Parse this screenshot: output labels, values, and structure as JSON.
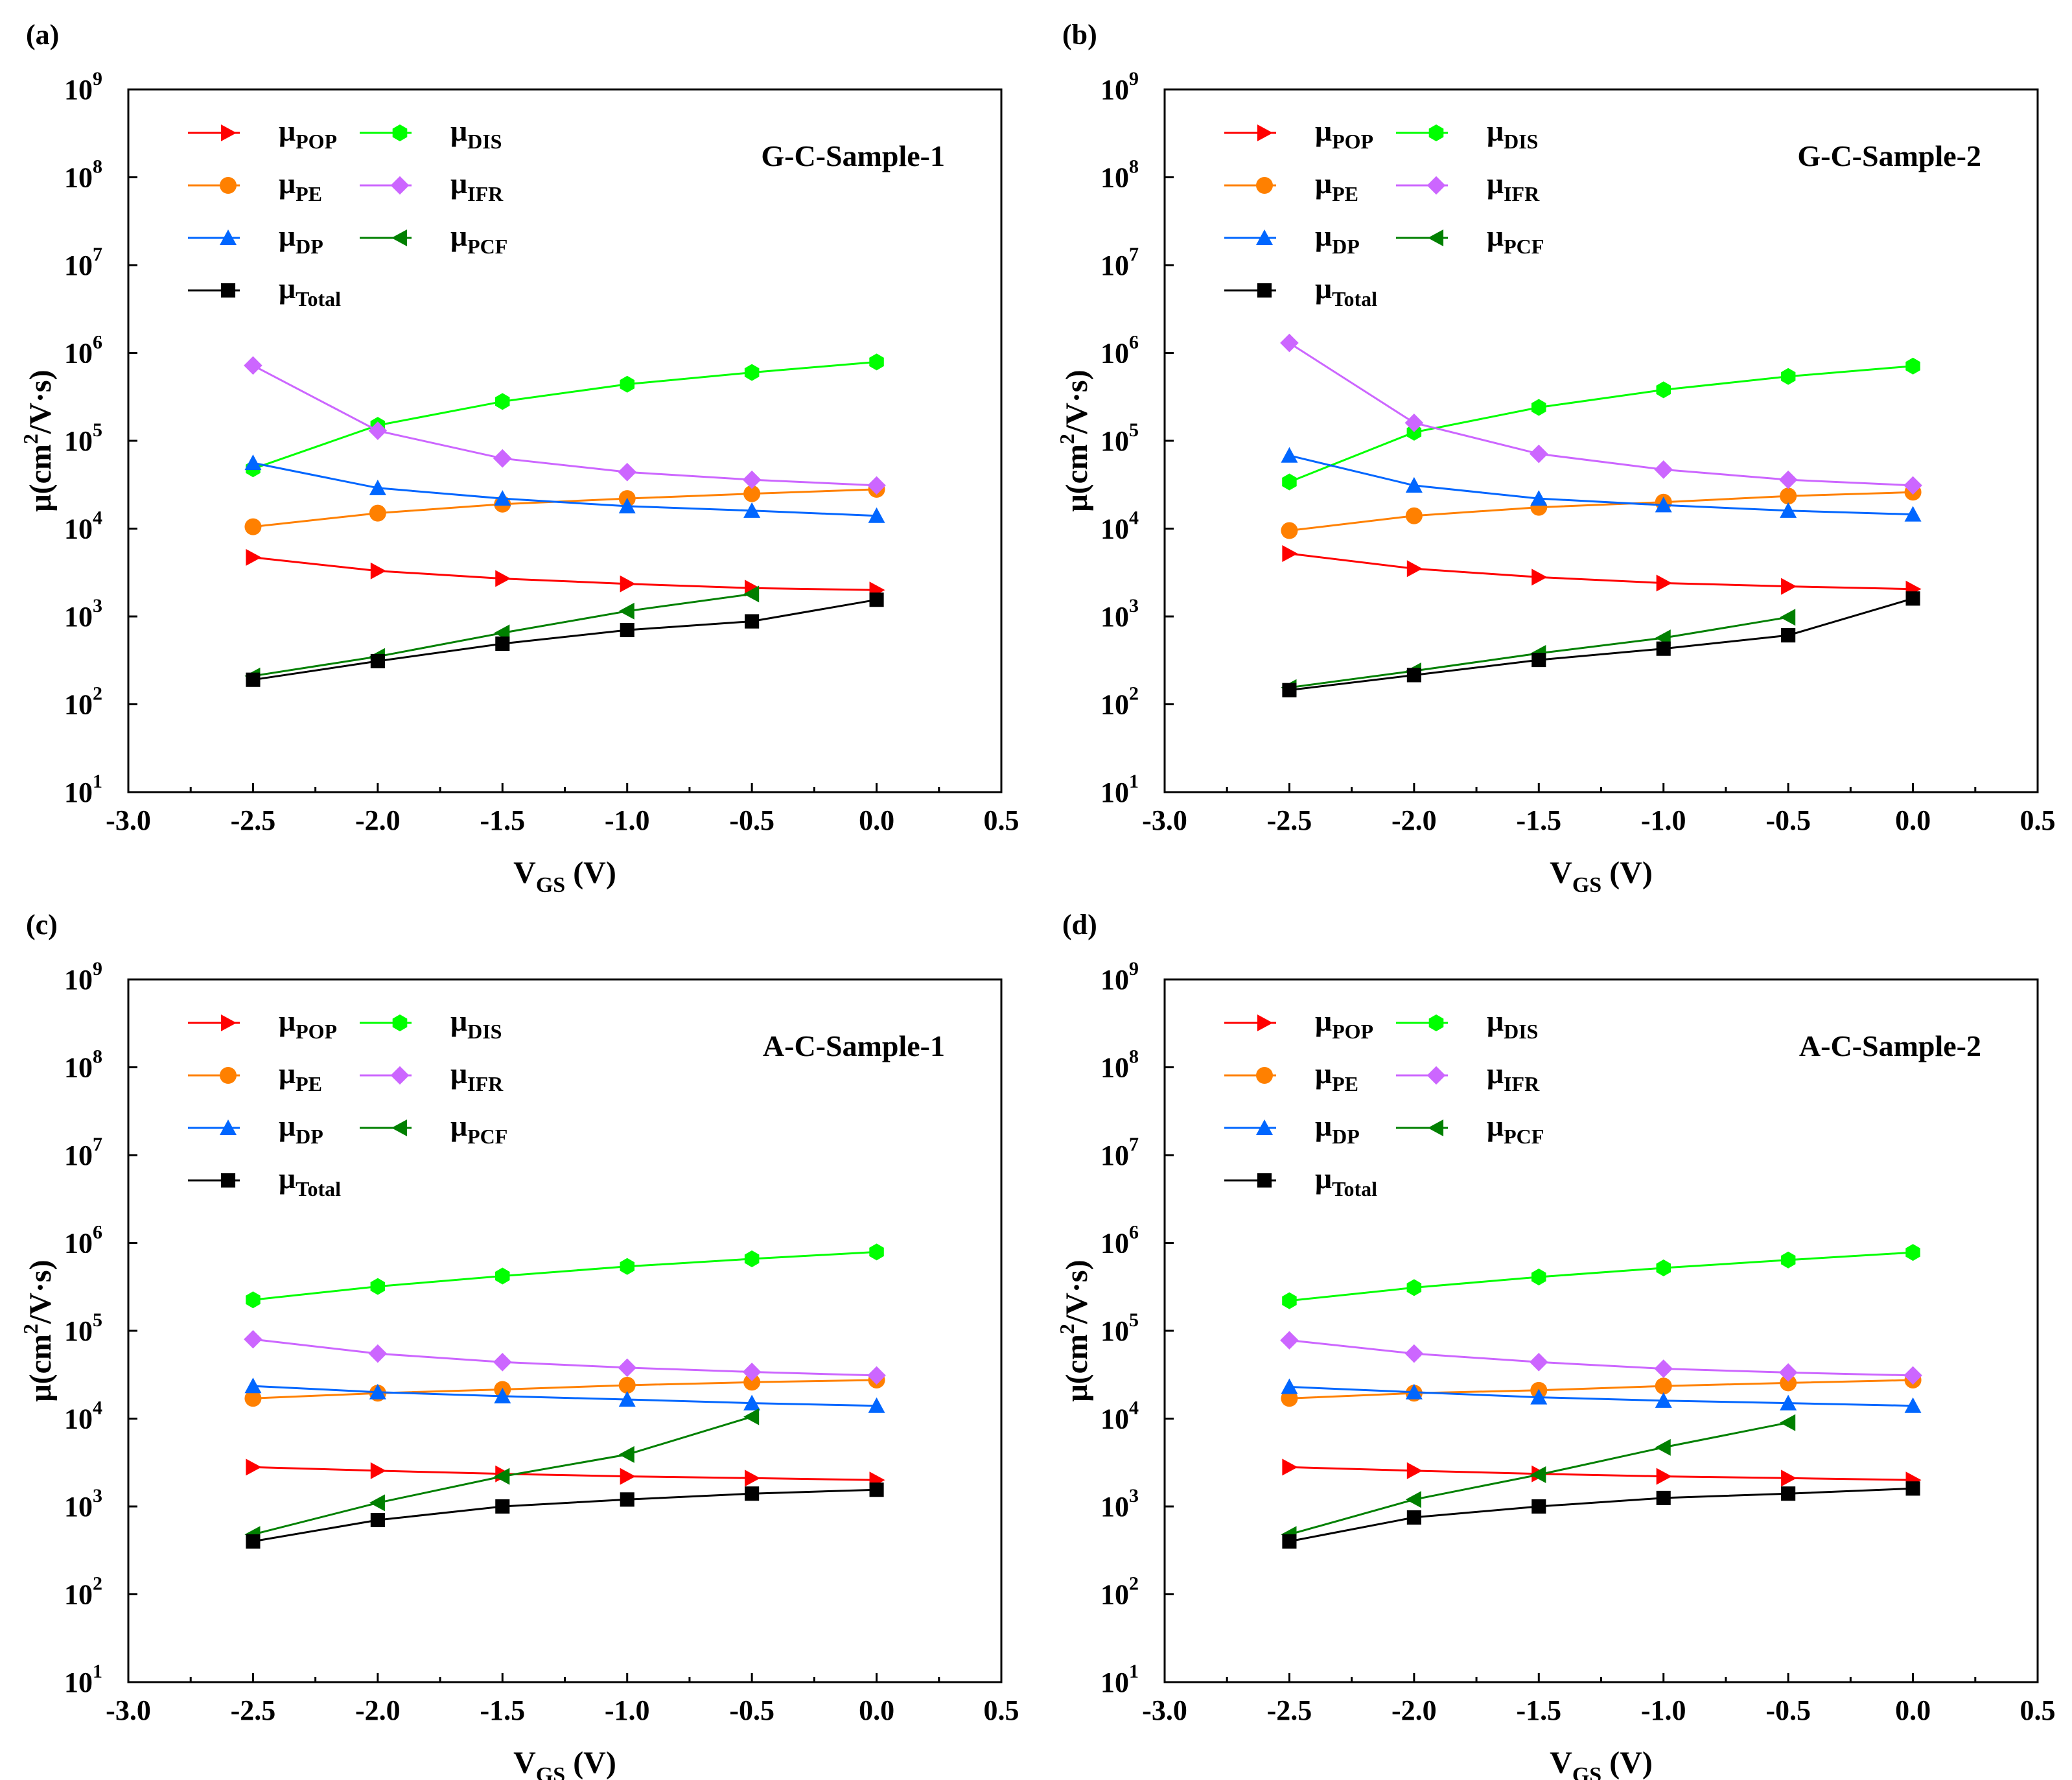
{
  "chart_data": [
    {
      "type": "line",
      "panel_label": "(a)",
      "sample_label": "G-C-Sample-1",
      "y_scale": "log",
      "xlabel": {
        "main": "V",
        "sub": "GS",
        "suffix": " (V)"
      },
      "ylabel": {
        "pre": "μ(cm",
        "sup": "2",
        "post": "/V·s)"
      },
      "xlim": [
        -3.0,
        0.5
      ],
      "ylim": [
        10,
        1000000000
      ],
      "x_ticks": [
        "-3.0",
        "-2.5",
        "-2.0",
        "-1.5",
        "-1.0",
        "-0.5",
        "0.0",
        "0.5"
      ],
      "y_ticks": [
        {
          "base": "10",
          "exp": "1"
        },
        {
          "base": "10",
          "exp": "2"
        },
        {
          "base": "10",
          "exp": "3"
        },
        {
          "base": "10",
          "exp": "4"
        },
        {
          "base": "10",
          "exp": "5"
        },
        {
          "base": "10",
          "exp": "6"
        },
        {
          "base": "10",
          "exp": "7"
        },
        {
          "base": "10",
          "exp": "8"
        },
        {
          "base": "10",
          "exp": "9"
        }
      ],
      "series": [
        {
          "key": "POP",
          "name": "μ",
          "sub": "POP",
          "color": "#ff0000",
          "marker": "triangle-right",
          "x": [
            -2.5,
            -2.0,
            -1.5,
            -1.0,
            -0.5,
            0.0
          ],
          "values": [
            4700,
            3300,
            2700,
            2350,
            2100,
            2000
          ]
        },
        {
          "key": "DIS",
          "name": "μ",
          "sub": "DIS",
          "color": "#00ff00",
          "marker": "hexagon",
          "x": [
            -2.5,
            -2.0,
            -1.5,
            -1.0,
            -0.5,
            0.0
          ],
          "values": [
            48000,
            150000,
            280000,
            440000,
            600000,
            790000
          ]
        },
        {
          "key": "PE",
          "name": "μ",
          "sub": "PE",
          "color": "#ff8000",
          "marker": "circle",
          "x": [
            -2.5,
            -2.0,
            -1.5,
            -1.0,
            -0.5,
            0.0
          ],
          "values": [
            10500,
            15000,
            19000,
            22000,
            25000,
            28000
          ]
        },
        {
          "key": "IFR",
          "name": "μ",
          "sub": "IFR",
          "color": "#cc66ff",
          "marker": "diamond",
          "x": [
            -2.5,
            -2.0,
            -1.5,
            -1.0,
            -0.5,
            0.0
          ],
          "values": [
            720000,
            130000,
            63000,
            44000,
            36000,
            31000
          ]
        },
        {
          "key": "DP",
          "name": "μ",
          "sub": "DP",
          "color": "#0066ff",
          "marker": "triangle-up",
          "x": [
            -2.5,
            -2.0,
            -1.5,
            -1.0,
            -0.5,
            0.0
          ],
          "values": [
            56000,
            29000,
            22000,
            18000,
            16000,
            14000
          ]
        },
        {
          "key": "PCF",
          "name": "μ",
          "sub": "PCF",
          "color": "#008000",
          "marker": "triangle-left",
          "x": [
            -2.5,
            -2.0,
            -1.5,
            -1.0,
            -0.5
          ],
          "values": [
            210,
            350,
            650,
            1150,
            1800
          ]
        },
        {
          "key": "Total",
          "name": "μ",
          "sub": "Total",
          "color": "#000000",
          "marker": "square",
          "x": [
            -2.5,
            -2.0,
            -1.5,
            -1.0,
            -0.5,
            0.0
          ],
          "values": [
            190,
            310,
            490,
            700,
            880,
            1550
          ]
        }
      ]
    },
    {
      "type": "line",
      "panel_label": "(b)",
      "sample_label": "G-C-Sample-2",
      "y_scale": "log",
      "xlabel": {
        "main": "V",
        "sub": "GS",
        "suffix": " (V)"
      },
      "ylabel": {
        "pre": "μ(cm",
        "sup": "2",
        "post": "/V·s)"
      },
      "xlim": [
        -3.0,
        0.5
      ],
      "ylim": [
        10,
        1000000000
      ],
      "x_ticks": [
        "-3.0",
        "-2.5",
        "-2.0",
        "-1.5",
        "-1.0",
        "-0.5",
        "0.0",
        "0.5"
      ],
      "y_ticks": [
        {
          "base": "10",
          "exp": "1"
        },
        {
          "base": "10",
          "exp": "2"
        },
        {
          "base": "10",
          "exp": "3"
        },
        {
          "base": "10",
          "exp": "4"
        },
        {
          "base": "10",
          "exp": "5"
        },
        {
          "base": "10",
          "exp": "6"
        },
        {
          "base": "10",
          "exp": "7"
        },
        {
          "base": "10",
          "exp": "8"
        },
        {
          "base": "10",
          "exp": "9"
        }
      ],
      "series": [
        {
          "key": "POP",
          "name": "μ",
          "sub": "POP",
          "color": "#ff0000",
          "marker": "triangle-right",
          "x": [
            -2.5,
            -2.0,
            -1.5,
            -1.0,
            -0.5,
            0.0
          ],
          "values": [
            5200,
            3500,
            2800,
            2400,
            2200,
            2050
          ]
        },
        {
          "key": "DIS",
          "name": "μ",
          "sub": "DIS",
          "color": "#00ff00",
          "marker": "hexagon",
          "x": [
            -2.5,
            -2.0,
            -1.5,
            -1.0,
            -0.5,
            0.0
          ],
          "values": [
            34000,
            125000,
            240000,
            380000,
            540000,
            710000
          ]
        },
        {
          "key": "PE",
          "name": "μ",
          "sub": "PE",
          "color": "#ff8000",
          "marker": "circle",
          "x": [
            -2.5,
            -2.0,
            -1.5,
            -1.0,
            -0.5,
            0.0
          ],
          "values": [
            9500,
            14000,
            17500,
            20000,
            23500,
            26000
          ]
        },
        {
          "key": "IFR",
          "name": "μ",
          "sub": "IFR",
          "color": "#cc66ff",
          "marker": "diamond",
          "x": [
            -2.5,
            -2.0,
            -1.5,
            -1.0,
            -0.5,
            0.0
          ],
          "values": [
            1300000,
            160000,
            71000,
            47000,
            36000,
            31000
          ]
        },
        {
          "key": "DP",
          "name": "μ",
          "sub": "DP",
          "color": "#0066ff",
          "marker": "triangle-up",
          "x": [
            -2.5,
            -2.0,
            -1.5,
            -1.0,
            -0.5,
            0.0
          ],
          "values": [
            68000,
            31000,
            22000,
            18500,
            16000,
            14500
          ]
        },
        {
          "key": "PCF",
          "name": "μ",
          "sub": "PCF",
          "color": "#008000",
          "marker": "triangle-left",
          "x": [
            -2.5,
            -2.0,
            -1.5,
            -1.0,
            -0.5
          ],
          "values": [
            155,
            240,
            380,
            570,
            980
          ]
        },
        {
          "key": "Total",
          "name": "μ",
          "sub": "Total",
          "color": "#000000",
          "marker": "square",
          "x": [
            -2.5,
            -2.0,
            -1.5,
            -1.0,
            -0.5,
            0.0
          ],
          "values": [
            145,
            215,
            320,
            430,
            610,
            1600
          ]
        }
      ]
    },
    {
      "type": "line",
      "panel_label": "(c)",
      "sample_label": "A-C-Sample-1",
      "y_scale": "log",
      "xlabel": {
        "main": "V",
        "sub": "GS",
        "suffix": " (V)"
      },
      "ylabel": {
        "pre": "μ(cm",
        "sup": "2",
        "post": "/V·s)"
      },
      "xlim": [
        -3.0,
        0.5
      ],
      "ylim": [
        10,
        1000000000
      ],
      "x_ticks": [
        "-3.0",
        "-2.5",
        "-2.0",
        "-1.5",
        "-1.0",
        "-0.5",
        "0.0",
        "0.5"
      ],
      "y_ticks": [
        {
          "base": "10",
          "exp": "1"
        },
        {
          "base": "10",
          "exp": "2"
        },
        {
          "base": "10",
          "exp": "3"
        },
        {
          "base": "10",
          "exp": "4"
        },
        {
          "base": "10",
          "exp": "5"
        },
        {
          "base": "10",
          "exp": "6"
        },
        {
          "base": "10",
          "exp": "7"
        },
        {
          "base": "10",
          "exp": "8"
        },
        {
          "base": "10",
          "exp": "9"
        }
      ],
      "series": [
        {
          "key": "POP",
          "name": "μ",
          "sub": "POP",
          "color": "#ff0000",
          "marker": "triangle-right",
          "x": [
            -2.5,
            -2.0,
            -1.5,
            -1.0,
            -0.5,
            0.0
          ],
          "values": [
            2800,
            2550,
            2350,
            2200,
            2100,
            2000
          ]
        },
        {
          "key": "DIS",
          "name": "μ",
          "sub": "DIS",
          "color": "#00ff00",
          "marker": "hexagon",
          "x": [
            -2.5,
            -2.0,
            -1.5,
            -1.0,
            -0.5,
            0.0
          ],
          "values": [
            225000,
            320000,
            420000,
            540000,
            660000,
            790000
          ]
        },
        {
          "key": "PE",
          "name": "μ",
          "sub": "PE",
          "color": "#ff8000",
          "marker": "circle",
          "x": [
            -2.5,
            -2.0,
            -1.5,
            -1.0,
            -0.5,
            0.0
          ],
          "values": [
            17000,
            19500,
            21500,
            24000,
            26000,
            27500
          ]
        },
        {
          "key": "IFR",
          "name": "μ",
          "sub": "IFR",
          "color": "#cc66ff",
          "marker": "diamond",
          "x": [
            -2.5,
            -2.0,
            -1.5,
            -1.0,
            -0.5,
            0.0
          ],
          "values": [
            80000,
            55000,
            44000,
            38000,
            34000,
            31000
          ]
        },
        {
          "key": "DP",
          "name": "μ",
          "sub": "DP",
          "color": "#0066ff",
          "marker": "triangle-up",
          "x": [
            -2.5,
            -2.0,
            -1.5,
            -1.0,
            -0.5,
            0.0
          ],
          "values": [
            23500,
            20000,
            18000,
            16500,
            15000,
            14000
          ]
        },
        {
          "key": "PCF",
          "name": "μ",
          "sub": "PCF",
          "color": "#008000",
          "marker": "triangle-left",
          "x": [
            -2.5,
            -2.0,
            -1.5,
            -1.0,
            -0.5
          ],
          "values": [
            480,
            1100,
            2200,
            3900,
            10500
          ]
        },
        {
          "key": "Total",
          "name": "μ",
          "sub": "Total",
          "color": "#000000",
          "marker": "square",
          "x": [
            -2.5,
            -2.0,
            -1.5,
            -1.0,
            -0.5,
            0.0
          ],
          "values": [
            400,
            700,
            1000,
            1200,
            1400,
            1550
          ]
        }
      ]
    },
    {
      "type": "line",
      "panel_label": "(d)",
      "sample_label": "A-C-Sample-2",
      "y_scale": "log",
      "xlabel": {
        "main": "V",
        "sub": "GS",
        "suffix": " (V)"
      },
      "ylabel": {
        "pre": "μ(cm",
        "sup": "2",
        "post": "/V·s)"
      },
      "xlim": [
        -3.0,
        0.5
      ],
      "ylim": [
        10,
        1000000000
      ],
      "x_ticks": [
        "-3.0",
        "-2.5",
        "-2.0",
        "-1.5",
        "-1.0",
        "-0.5",
        "0.0",
        "0.5"
      ],
      "y_ticks": [
        {
          "base": "10",
          "exp": "1"
        },
        {
          "base": "10",
          "exp": "2"
        },
        {
          "base": "10",
          "exp": "3"
        },
        {
          "base": "10",
          "exp": "4"
        },
        {
          "base": "10",
          "exp": "5"
        },
        {
          "base": "10",
          "exp": "6"
        },
        {
          "base": "10",
          "exp": "7"
        },
        {
          "base": "10",
          "exp": "8"
        },
        {
          "base": "10",
          "exp": "9"
        }
      ],
      "series": [
        {
          "key": "POP",
          "name": "μ",
          "sub": "POP",
          "color": "#ff0000",
          "marker": "triangle-right",
          "x": [
            -2.5,
            -2.0,
            -1.5,
            -1.0,
            -0.5,
            0.0
          ],
          "values": [
            2800,
            2550,
            2350,
            2200,
            2100,
            2000
          ]
        },
        {
          "key": "DIS",
          "name": "μ",
          "sub": "DIS",
          "color": "#00ff00",
          "marker": "hexagon",
          "x": [
            -2.5,
            -2.0,
            -1.5,
            -1.0,
            -0.5,
            0.0
          ],
          "values": [
            220000,
            310000,
            410000,
            520000,
            640000,
            780000
          ]
        },
        {
          "key": "PE",
          "name": "μ",
          "sub": "PE",
          "color": "#ff8000",
          "marker": "circle",
          "x": [
            -2.5,
            -2.0,
            -1.5,
            -1.0,
            -0.5,
            0.0
          ],
          "values": [
            17000,
            19500,
            21000,
            23500,
            25500,
            27500
          ]
        },
        {
          "key": "IFR",
          "name": "μ",
          "sub": "IFR",
          "color": "#cc66ff",
          "marker": "diamond",
          "x": [
            -2.5,
            -2.0,
            -1.5,
            -1.0,
            -0.5,
            0.0
          ],
          "values": [
            78000,
            55000,
            44000,
            37000,
            33500,
            31000
          ]
        },
        {
          "key": "DP",
          "name": "μ",
          "sub": "DP",
          "color": "#0066ff",
          "marker": "triangle-up",
          "x": [
            -2.5,
            -2.0,
            -1.5,
            -1.0,
            -0.5,
            0.0
          ],
          "values": [
            23000,
            20000,
            17500,
            16000,
            15000,
            14000
          ]
        },
        {
          "key": "PCF",
          "name": "μ",
          "sub": "PCF",
          "color": "#008000",
          "marker": "triangle-left",
          "x": [
            -2.5,
            -2.0,
            -1.5,
            -1.0,
            -0.5
          ],
          "values": [
            480,
            1200,
            2300,
            4700,
            9000
          ]
        },
        {
          "key": "Total",
          "name": "μ",
          "sub": "Total",
          "color": "#000000",
          "marker": "square",
          "x": [
            -2.5,
            -2.0,
            -1.5,
            -1.0,
            -0.5,
            0.0
          ],
          "values": [
            400,
            750,
            1000,
            1250,
            1400,
            1600
          ]
        }
      ]
    }
  ]
}
